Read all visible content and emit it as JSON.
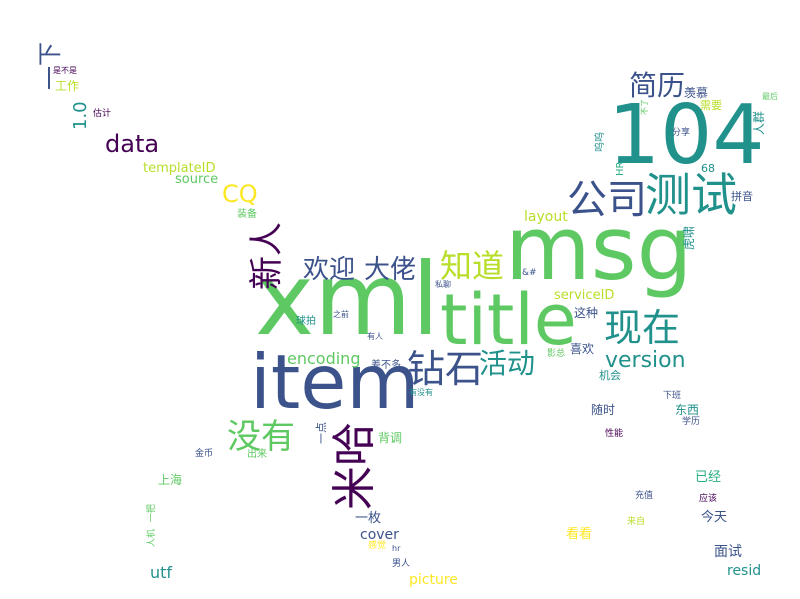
{
  "colors": {
    "background": "#ffffff",
    "palette": [
      "#440154",
      "#3b528b",
      "#21918c",
      "#28ae80",
      "#5ec962",
      "#b8de29",
      "#fde725"
    ]
  },
  "cloud": {
    "words": [
      {
        "text": "xml",
        "color": "#5ec962"
      },
      {
        "text": "msg",
        "color": "#5ec962"
      },
      {
        "text": "title",
        "color": "#5ec962"
      },
      {
        "text": "item",
        "color": "#3b528b"
      },
      {
        "text": "104",
        "color": "#21918c"
      },
      {
        "text": "测试",
        "color": "#21918c"
      },
      {
        "text": "公司",
        "color": "#3b528b"
      },
      {
        "text": "现在",
        "color": "#21918c"
      },
      {
        "text": "米哈",
        "color": "#440154"
      },
      {
        "text": "钻石",
        "color": "#3b528b"
      },
      {
        "text": "没有",
        "color": "#5ec962"
      },
      {
        "text": "新人",
        "color": "#440154"
      },
      {
        "text": "知道",
        "color": "#b8de29"
      },
      {
        "text": "活动",
        "color": "#21918c"
      },
      {
        "text": "欢迎",
        "color": "#3b528b"
      },
      {
        "text": "大佬",
        "color": "#3b528b"
      },
      {
        "text": "简历",
        "color": "#3b528b"
      },
      {
        "text": "data",
        "color": "#440154"
      },
      {
        "text": "version",
        "color": "#21918c"
      },
      {
        "text": "CQ",
        "color": "#fde725"
      },
      {
        "text": "encoding",
        "color": "#5ec962"
      },
      {
        "text": "一下",
        "color": "#3b528b"
      },
      {
        "text": "1.0",
        "color": "#21918c"
      },
      {
        "text": "templateID",
        "color": "#b8de29"
      },
      {
        "text": "source",
        "color": "#5ec962"
      },
      {
        "text": "layout",
        "color": "#b8de29"
      },
      {
        "text": "serviceID",
        "color": "#b8de29"
      },
      {
        "text": "cover",
        "color": "#3b528b"
      },
      {
        "text": "picture",
        "color": "#fde725"
      },
      {
        "text": "utf",
        "color": "#21918c"
      },
      {
        "text": "resid",
        "color": "#21918c"
      },
      {
        "text": "面试",
        "color": "#3b528b"
      },
      {
        "text": "今天",
        "color": "#3b528b"
      },
      {
        "text": "已经",
        "color": "#28ae80"
      },
      {
        "text": "看看",
        "color": "#fde725"
      },
      {
        "text": "一枚",
        "color": "#3b528b"
      },
      {
        "text": "上海",
        "color": "#5ec962"
      },
      {
        "text": "背调",
        "color": "#5ec962"
      },
      {
        "text": "喜欢",
        "color": "#3b528b"
      },
      {
        "text": "这种",
        "color": "#3b528b"
      },
      {
        "text": "随时",
        "color": "#3b528b"
      },
      {
        "text": "东西",
        "color": "#21918c"
      },
      {
        "text": "机会",
        "color": "#21918c"
      },
      {
        "text": "拼音",
        "color": "#3b528b"
      },
      {
        "text": "羡慕",
        "color": "#3b528b"
      },
      {
        "text": "需要",
        "color": "#b8de29"
      },
      {
        "text": "工作",
        "color": "#b8de29"
      },
      {
        "text": "装备",
        "color": "#5ec962"
      },
      {
        "text": "出来",
        "color": "#5ec962"
      },
      {
        "text": "金币",
        "color": "#3b528b"
      },
      {
        "text": "差不多",
        "color": "#3b528b"
      },
      {
        "text": "有没有",
        "color": "#21918c"
      },
      {
        "text": "影总",
        "color": "#5ec962"
      },
      {
        "text": "球拍",
        "color": "#21918c"
      },
      {
        "text": "之前",
        "color": "#3b528b"
      },
      {
        "text": "有人",
        "color": "#3b528b"
      },
      {
        "text": "私聊",
        "color": "#3b528b"
      },
      {
        "text": "&#",
        "color": "#3b528b"
      },
      {
        "text": "68",
        "color": "#21918c"
      },
      {
        "text": "分享",
        "color": "#3b528b"
      },
      {
        "text": "人群",
        "color": "#21918c"
      },
      {
        "text": "最后",
        "color": "#5ec962"
      },
      {
        "text": "不了",
        "color": "#5ec962"
      },
      {
        "text": "呜呜",
        "color": "#21918c"
      },
      {
        "text": "HR",
        "color": "#28ae80"
      },
      {
        "text": "虎啸",
        "color": "#21918c"
      },
      {
        "text": "下班",
        "color": "#3b528b"
      },
      {
        "text": "学历",
        "color": "#3b528b"
      },
      {
        "text": "性能",
        "color": "#440154"
      },
      {
        "text": "充值",
        "color": "#3b528b"
      },
      {
        "text": "应该",
        "color": "#440154"
      },
      {
        "text": "来自",
        "color": "#b8de29"
      },
      {
        "text": "男人",
        "color": "#3b528b"
      },
      {
        "text": "hr",
        "color": "#3b528b"
      },
      {
        "text": "感觉",
        "color": "#fde725"
      },
      {
        "text": "一把",
        "color": "#5ec962"
      },
      {
        "text": "人机",
        "color": "#5ec962"
      },
      {
        "text": "估计",
        "color": "#440154"
      },
      {
        "text": "是不是",
        "color": "#440154"
      },
      {
        "text": "一点",
        "color": "#3b528b"
      }
    ]
  }
}
